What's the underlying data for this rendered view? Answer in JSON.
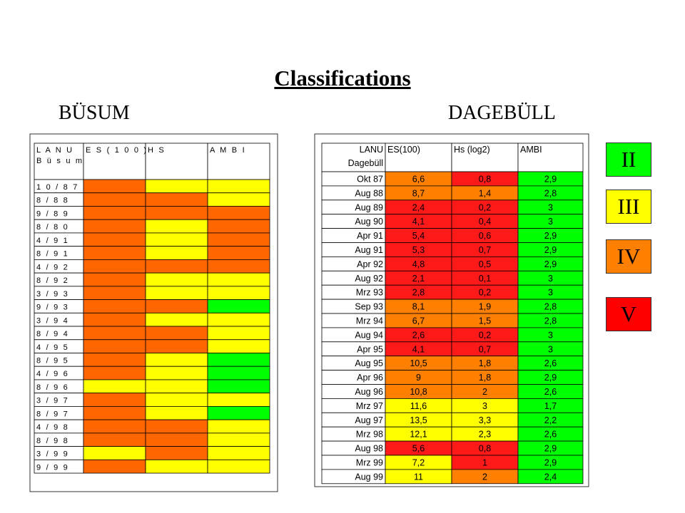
{
  "title": "Classifications",
  "busum_title": "BÜSUM",
  "dagebull_title": "DAGEBÜLL",
  "legend": [
    {
      "label": "II",
      "color": "#00ff00"
    },
    {
      "label": "III",
      "color": "#ffff00"
    },
    {
      "label": "IV",
      "color": "#ff8000"
    },
    {
      "label": "V",
      "color": "#ff0000"
    }
  ],
  "colors": {
    "II": "#00ff00",
    "III": "#ffff00",
    "IV": "#ff6600",
    "V": "#ff1a1a",
    "IV_dage": "#ff8000"
  },
  "chart_data": [
    {
      "type": "table",
      "title": "BÜSUM",
      "header": [
        "L A N U",
        "E S ( 1 0 0 )",
        "H S",
        "A M B I"
      ],
      "header_line2": "B ü s u m",
      "rows": [
        {
          "date": "1 0 / 8 7",
          "es": "IV",
          "hs": "III",
          "ambi": "III"
        },
        {
          "date": "8 / 8 8",
          "es": "IV",
          "hs": "IV",
          "ambi": "III"
        },
        {
          "date": "9 / 8 9",
          "es": "IV",
          "hs": "IV",
          "ambi": "IV"
        },
        {
          "date": "8 / 8 0",
          "es": "IV",
          "hs": "III",
          "ambi": "IV"
        },
        {
          "date": "4 / 9 1",
          "es": "IV",
          "hs": "III",
          "ambi": "IV"
        },
        {
          "date": "8 / 9 1",
          "es": "IV",
          "hs": "III",
          "ambi": "IV"
        },
        {
          "date": "4 / 9 2",
          "es": "IV",
          "hs": "IV",
          "ambi": "IV"
        },
        {
          "date": "8 / 9 2",
          "es": "IV",
          "hs": "III",
          "ambi": "III"
        },
        {
          "date": "3 / 9 3",
          "es": "IV",
          "hs": "III",
          "ambi": "III"
        },
        {
          "date": "9 / 9 3",
          "es": "IV",
          "hs": "IV",
          "ambi": "II"
        },
        {
          "date": "3 / 9 4",
          "es": "IV",
          "hs": "III",
          "ambi": "III"
        },
        {
          "date": "8 / 9 4",
          "es": "IV",
          "hs": "IV",
          "ambi": "III"
        },
        {
          "date": "4 / 9 5",
          "es": "IV",
          "hs": "IV",
          "ambi": "III"
        },
        {
          "date": "8 / 9 5",
          "es": "IV",
          "hs": "III",
          "ambi": "II"
        },
        {
          "date": "4 / 9 6",
          "es": "IV",
          "hs": "III",
          "ambi": "II"
        },
        {
          "date": "8 / 9 6",
          "es": "III",
          "hs": "III",
          "ambi": "II"
        },
        {
          "date": "3 / 9 7",
          "es": "IV",
          "hs": "III",
          "ambi": "III"
        },
        {
          "date": "8 / 9 7",
          "es": "IV",
          "hs": "III",
          "ambi": "II"
        },
        {
          "date": "4 / 9 8",
          "es": "IV",
          "hs": "IV",
          "ambi": "III"
        },
        {
          "date": "8 / 9 8",
          "es": "IV",
          "hs": "IV",
          "ambi": "III"
        },
        {
          "date": "3 / 9 9",
          "es": "III",
          "hs": "IV",
          "ambi": "III"
        },
        {
          "date": "9 / 9 9",
          "es": "IV",
          "hs": "III",
          "ambi": "III"
        }
      ]
    },
    {
      "type": "table",
      "title": "DAGEBÜLL",
      "header": [
        "LANU",
        "ES(100)",
        "Hs (log2)",
        "AMBI"
      ],
      "header_line2": "Dagebüll",
      "rows": [
        {
          "date": "Okt 87",
          "es": "6,6",
          "es_class": "IV",
          "hs": "0,8",
          "hs_class": "V",
          "ambi": "2,9",
          "ambi_class": "II"
        },
        {
          "date": "Aug 88",
          "es": "8,7",
          "es_class": "IV",
          "hs": "1,4",
          "hs_class": "IV",
          "ambi": "2,8",
          "ambi_class": "II"
        },
        {
          "date": "Aug 89",
          "es": "2,4",
          "es_class": "V",
          "hs": "0,2",
          "hs_class": "V",
          "ambi": "3",
          "ambi_class": "II"
        },
        {
          "date": "Aug 90",
          "es": "4,1",
          "es_class": "V",
          "hs": "0,4",
          "hs_class": "V",
          "ambi": "3",
          "ambi_class": "II"
        },
        {
          "date": "Apr 91",
          "es": "5,4",
          "es_class": "V",
          "hs": "0,6",
          "hs_class": "V",
          "ambi": "2,9",
          "ambi_class": "II"
        },
        {
          "date": "Aug 91",
          "es": "5,3",
          "es_class": "V",
          "hs": "0,7",
          "hs_class": "V",
          "ambi": "2,9",
          "ambi_class": "II"
        },
        {
          "date": "Apr 92",
          "es": "4,8",
          "es_class": "V",
          "hs": "0,5",
          "hs_class": "V",
          "ambi": "2,9",
          "ambi_class": "II"
        },
        {
          "date": "Aug 92",
          "es": "2,1",
          "es_class": "V",
          "hs": "0,1",
          "hs_class": "V",
          "ambi": "3",
          "ambi_class": "II"
        },
        {
          "date": "Mrz 93",
          "es": "2,8",
          "es_class": "V",
          "hs": "0,2",
          "hs_class": "V",
          "ambi": "3",
          "ambi_class": "II"
        },
        {
          "date": "Sep 93",
          "es": "8,1",
          "es_class": "IV",
          "hs": "1,9",
          "hs_class": "IV",
          "ambi": "2,8",
          "ambi_class": "II"
        },
        {
          "date": "Mrz 94",
          "es": "6,7",
          "es_class": "IV",
          "hs": "1,5",
          "hs_class": "IV",
          "ambi": "2,8",
          "ambi_class": "II"
        },
        {
          "date": "Aug 94",
          "es": "2,6",
          "es_class": "V",
          "hs": "0,2",
          "hs_class": "V",
          "ambi": "3",
          "ambi_class": "II"
        },
        {
          "date": "Apr 95",
          "es": "4,1",
          "es_class": "V",
          "hs": "0,7",
          "hs_class": "V",
          "ambi": "3",
          "ambi_class": "II"
        },
        {
          "date": "Aug 95",
          "es": "10,5",
          "es_class": "IV",
          "hs": "1,8",
          "hs_class": "IV",
          "ambi": "2,6",
          "ambi_class": "II"
        },
        {
          "date": "Apr 96",
          "es": "9",
          "es_class": "IV",
          "hs": "1,8",
          "hs_class": "IV",
          "ambi": "2,9",
          "ambi_class": "II"
        },
        {
          "date": "Aug 96",
          "es": "10,8",
          "es_class": "IV",
          "hs": "2",
          "hs_class": "IV",
          "ambi": "2,6",
          "ambi_class": "II"
        },
        {
          "date": "Mrz 97",
          "es": "11,6",
          "es_class": "III",
          "hs": "3",
          "hs_class": "III",
          "ambi": "1,7",
          "ambi_class": "II"
        },
        {
          "date": "Aug 97",
          "es": "13,5",
          "es_class": "III",
          "hs": "3,3",
          "hs_class": "III",
          "ambi": "2,2",
          "ambi_class": "II"
        },
        {
          "date": "Mrz 98",
          "es": "12,1",
          "es_class": "III",
          "hs": "2,3",
          "hs_class": "III",
          "ambi": "2,6",
          "ambi_class": "II"
        },
        {
          "date": "Aug 98",
          "es": "5,6",
          "es_class": "V",
          "hs": "0,8",
          "hs_class": "V",
          "ambi": "2,9",
          "ambi_class": "II"
        },
        {
          "date": "Mrz 99",
          "es": "7,2",
          "es_class": "III",
          "hs": "1",
          "hs_class": "V",
          "ambi": "2,9",
          "ambi_class": "II"
        },
        {
          "date": "Aug 99",
          "es": "11",
          "es_class": "III",
          "hs": "2",
          "hs_class": "IV",
          "ambi": "2,4",
          "ambi_class": "II"
        }
      ]
    }
  ]
}
